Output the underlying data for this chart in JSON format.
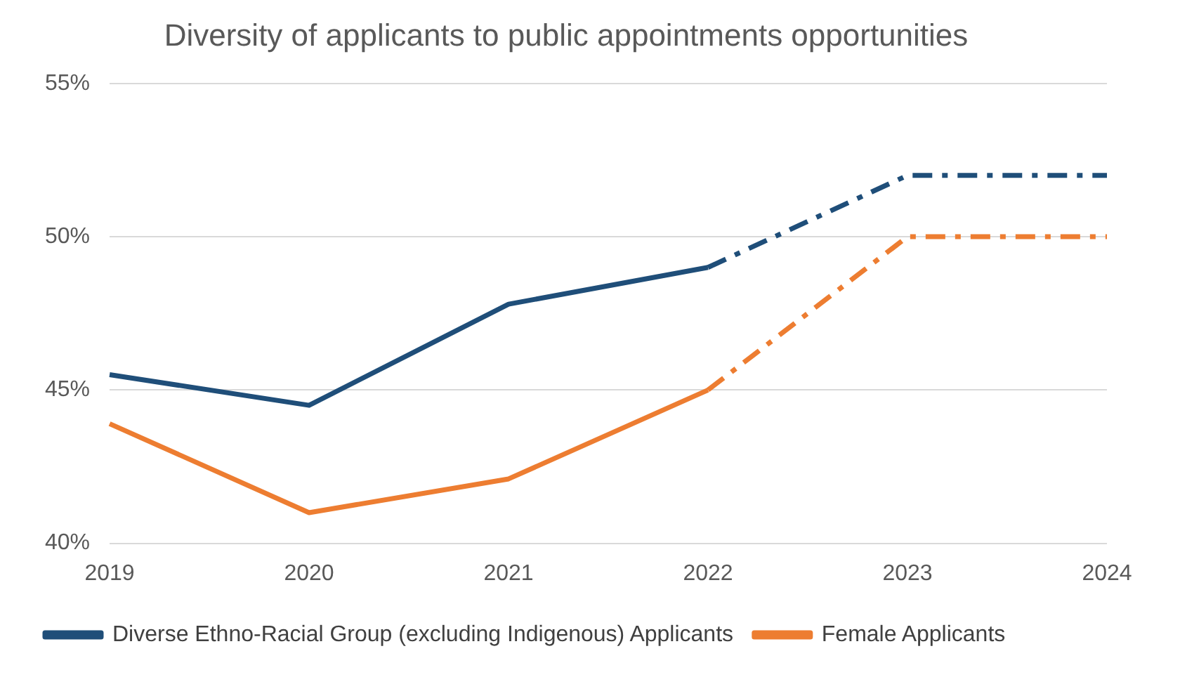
{
  "chart_data": {
    "type": "line",
    "title": "Diversity of applicants to public appointments opportunities",
    "categories": [
      "2019",
      "2020",
      "2021",
      "2022",
      "2023",
      "2024"
    ],
    "series": [
      {
        "name": "Diverse Ethno-Racial Group (excluding Indigenous) Applicants",
        "color": "#1f4e79",
        "values": [
          45.5,
          44.5,
          47.8,
          49.0,
          null,
          null
        ]
      },
      {
        "name": "Female Applicants",
        "color": "#ed7d31",
        "values": [
          43.9,
          41.0,
          42.1,
          45.0,
          null,
          null
        ]
      },
      {
        "color": "#1f4e79",
        "line_style": "dashed",
        "values": [
          null,
          null,
          null,
          49.0,
          52.0,
          52.0
        ]
      },
      {
        "color": "#ed7d31",
        "line_style": "dashed",
        "values": [
          null,
          null,
          null,
          45.0,
          50.0,
          50.0
        ]
      }
    ],
    "ylim": [
      40,
      55
    ],
    "yticks": [
      {
        "value": 40,
        "label": "40%"
      },
      {
        "value": 45,
        "label": "45%"
      },
      {
        "value": 50,
        "label": "50%"
      },
      {
        "value": 55,
        "label": "55%"
      }
    ],
    "grid": "y",
    "legend": "bottom",
    "marker": "none"
  }
}
